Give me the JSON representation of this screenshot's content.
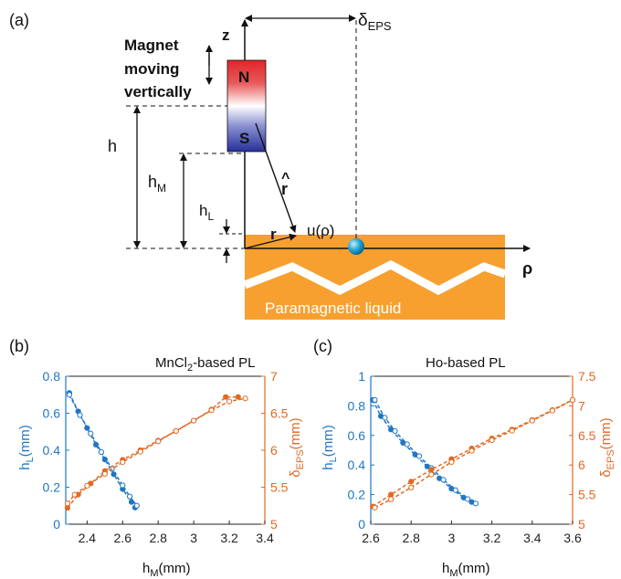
{
  "colors": {
    "blue": "#1f77c4",
    "orange": "#e06a25",
    "liquid": "#f7a030",
    "magnet_north": "#e0262b",
    "magnet_south": "#26309a",
    "bead": "#29a9d8",
    "line": "#111111"
  },
  "panel_a": {
    "panel_label": "(a)",
    "caption_line1": "Magnet",
    "caption_line2": "moving",
    "caption_line3": "vertically",
    "pole_north": "N",
    "pole_south": "S",
    "axis_z": "z",
    "axis_rho": "ρ",
    "delta_main": "δ",
    "delta_sub": "EPS",
    "h_label": "h",
    "hm_main": "h",
    "hm_sub": "M",
    "hl_main": "h",
    "hl_sub": "L",
    "r_hat": "r",
    "r_hat_accent": "^",
    "r_vec": "r",
    "u_label": "u(ρ)",
    "liquid_label": "Paramagnetic liquid"
  },
  "chart_data": [
    {
      "type": "line",
      "panel_label": "(b)",
      "title_pre": "MnCl",
      "title_sub": "2",
      "title_post": "-based PL",
      "xlabel_main": "h",
      "xlabel_sub": "M",
      "xlabel_unit": "(mm)",
      "ylabel_left_main": "h",
      "ylabel_left_sub": "L",
      "ylabel_left_unit": "(mm)",
      "ylabel_right_main": "δ",
      "ylabel_right_sub": "EPS",
      "ylabel_right_unit": "(mm)",
      "xlim": [
        2.28,
        3.4
      ],
      "ylim_left": [
        0,
        0.8
      ],
      "ylim_right": [
        5,
        7
      ],
      "x_ticks": [
        "2.4",
        "2.6",
        "2.8",
        "3",
        "3.2",
        "3.4"
      ],
      "x_tick_values": [
        2.4,
        2.6,
        2.8,
        3.0,
        3.2,
        3.4
      ],
      "y_left_ticks": [
        "0",
        "0.2",
        "0.4",
        "0.6",
        "0.8"
      ],
      "y_left_tick_values": [
        0,
        0.2,
        0.4,
        0.6,
        0.8
      ],
      "y_right_ticks": [
        "5",
        "5.5",
        "6",
        "6.5",
        "7"
      ],
      "y_right_tick_values": [
        5,
        5.5,
        6,
        6.5,
        7
      ],
      "series": [
        {
          "axis": "left",
          "color": "#1f77c4",
          "marker": "filled",
          "x": [
            2.3,
            2.35,
            2.4,
            2.45,
            2.5,
            2.55,
            2.6,
            2.65,
            2.67
          ],
          "y": [
            0.71,
            0.61,
            0.52,
            0.43,
            0.35,
            0.27,
            0.19,
            0.12,
            0.09
          ]
        },
        {
          "axis": "left",
          "color": "#1f77c4",
          "marker": "open",
          "x": [
            2.3,
            2.36,
            2.42,
            2.48,
            2.54,
            2.6,
            2.64,
            2.68
          ],
          "y": [
            0.7,
            0.59,
            0.49,
            0.39,
            0.3,
            0.21,
            0.15,
            0.1
          ]
        },
        {
          "axis": "right",
          "color": "#e06a25",
          "marker": "filled",
          "x": [
            2.29,
            2.35,
            2.42,
            2.5,
            2.6,
            2.7,
            2.8,
            2.9,
            3.0,
            3.1,
            3.18,
            3.25
          ],
          "y": [
            5.22,
            5.4,
            5.55,
            5.72,
            5.87,
            6.0,
            6.13,
            6.26,
            6.4,
            6.55,
            6.72,
            6.72
          ]
        },
        {
          "axis": "right",
          "color": "#e06a25",
          "marker": "open",
          "x": [
            2.29,
            2.33,
            2.4,
            2.5,
            2.6,
            2.7,
            2.8,
            2.9,
            3.0,
            3.1,
            3.2,
            3.29
          ],
          "y": [
            5.28,
            5.4,
            5.52,
            5.68,
            5.84,
            5.98,
            6.12,
            6.26,
            6.4,
            6.54,
            6.66,
            6.7
          ]
        }
      ]
    },
    {
      "type": "line",
      "panel_label": "(c)",
      "title_pre": "Ho-based PL",
      "title_sub": "",
      "title_post": "",
      "xlabel_main": "h",
      "xlabel_sub": "M",
      "xlabel_unit": "(mm)",
      "ylabel_left_main": "h",
      "ylabel_left_sub": "L",
      "ylabel_left_unit": "(mm)",
      "ylabel_right_main": "δ",
      "ylabel_right_sub": "EPS",
      "ylabel_right_unit": "(mm)",
      "xlim": [
        2.6,
        3.6
      ],
      "ylim_left": [
        0,
        1
      ],
      "ylim_right": [
        5,
        7.5
      ],
      "x_ticks": [
        "2.6",
        "2.8",
        "3",
        "3.2",
        "3.4",
        "3.6"
      ],
      "x_tick_values": [
        2.6,
        2.8,
        3.0,
        3.2,
        3.4,
        3.6
      ],
      "y_left_ticks": [
        "0",
        "0.2",
        "0.4",
        "0.6",
        "0.8",
        "1"
      ],
      "y_left_tick_values": [
        0,
        0.2,
        0.4,
        0.6,
        0.8,
        1
      ],
      "y_right_ticks": [
        "5",
        "5.5",
        "6",
        "6.5",
        "7",
        "7.5"
      ],
      "y_right_tick_values": [
        5,
        5.5,
        6,
        6.5,
        7,
        7.5
      ],
      "series": [
        {
          "axis": "left",
          "color": "#1f77c4",
          "marker": "filled",
          "x": [
            2.61,
            2.65,
            2.7,
            2.76,
            2.82,
            2.88,
            2.94,
            3.0,
            3.06,
            3.1
          ],
          "y": [
            0.84,
            0.73,
            0.64,
            0.55,
            0.47,
            0.39,
            0.31,
            0.24,
            0.18,
            0.15
          ]
        },
        {
          "axis": "left",
          "color": "#1f77c4",
          "marker": "open",
          "x": [
            2.62,
            2.67,
            2.72,
            2.78,
            2.84,
            2.9,
            2.96,
            3.02,
            3.08,
            3.12
          ],
          "y": [
            0.84,
            0.72,
            0.63,
            0.54,
            0.46,
            0.38,
            0.3,
            0.23,
            0.17,
            0.14
          ]
        },
        {
          "axis": "right",
          "color": "#e06a25",
          "marker": "filled",
          "x": [
            2.61,
            2.7,
            2.8,
            2.9,
            3.0,
            3.1,
            3.2,
            3.3,
            3.4,
            3.5,
            3.6
          ],
          "y": [
            5.3,
            5.5,
            5.72,
            5.92,
            6.1,
            6.28,
            6.45,
            6.6,
            6.76,
            6.93,
            7.1
          ]
        },
        {
          "axis": "right",
          "color": "#e06a25",
          "marker": "open",
          "x": [
            2.62,
            2.7,
            2.8,
            2.9,
            3.0,
            3.1,
            3.2,
            3.3,
            3.4,
            3.5,
            3.6
          ],
          "y": [
            5.28,
            5.42,
            5.62,
            5.84,
            6.05,
            6.24,
            6.42,
            6.58,
            6.75,
            6.92,
            7.1
          ]
        }
      ]
    }
  ]
}
